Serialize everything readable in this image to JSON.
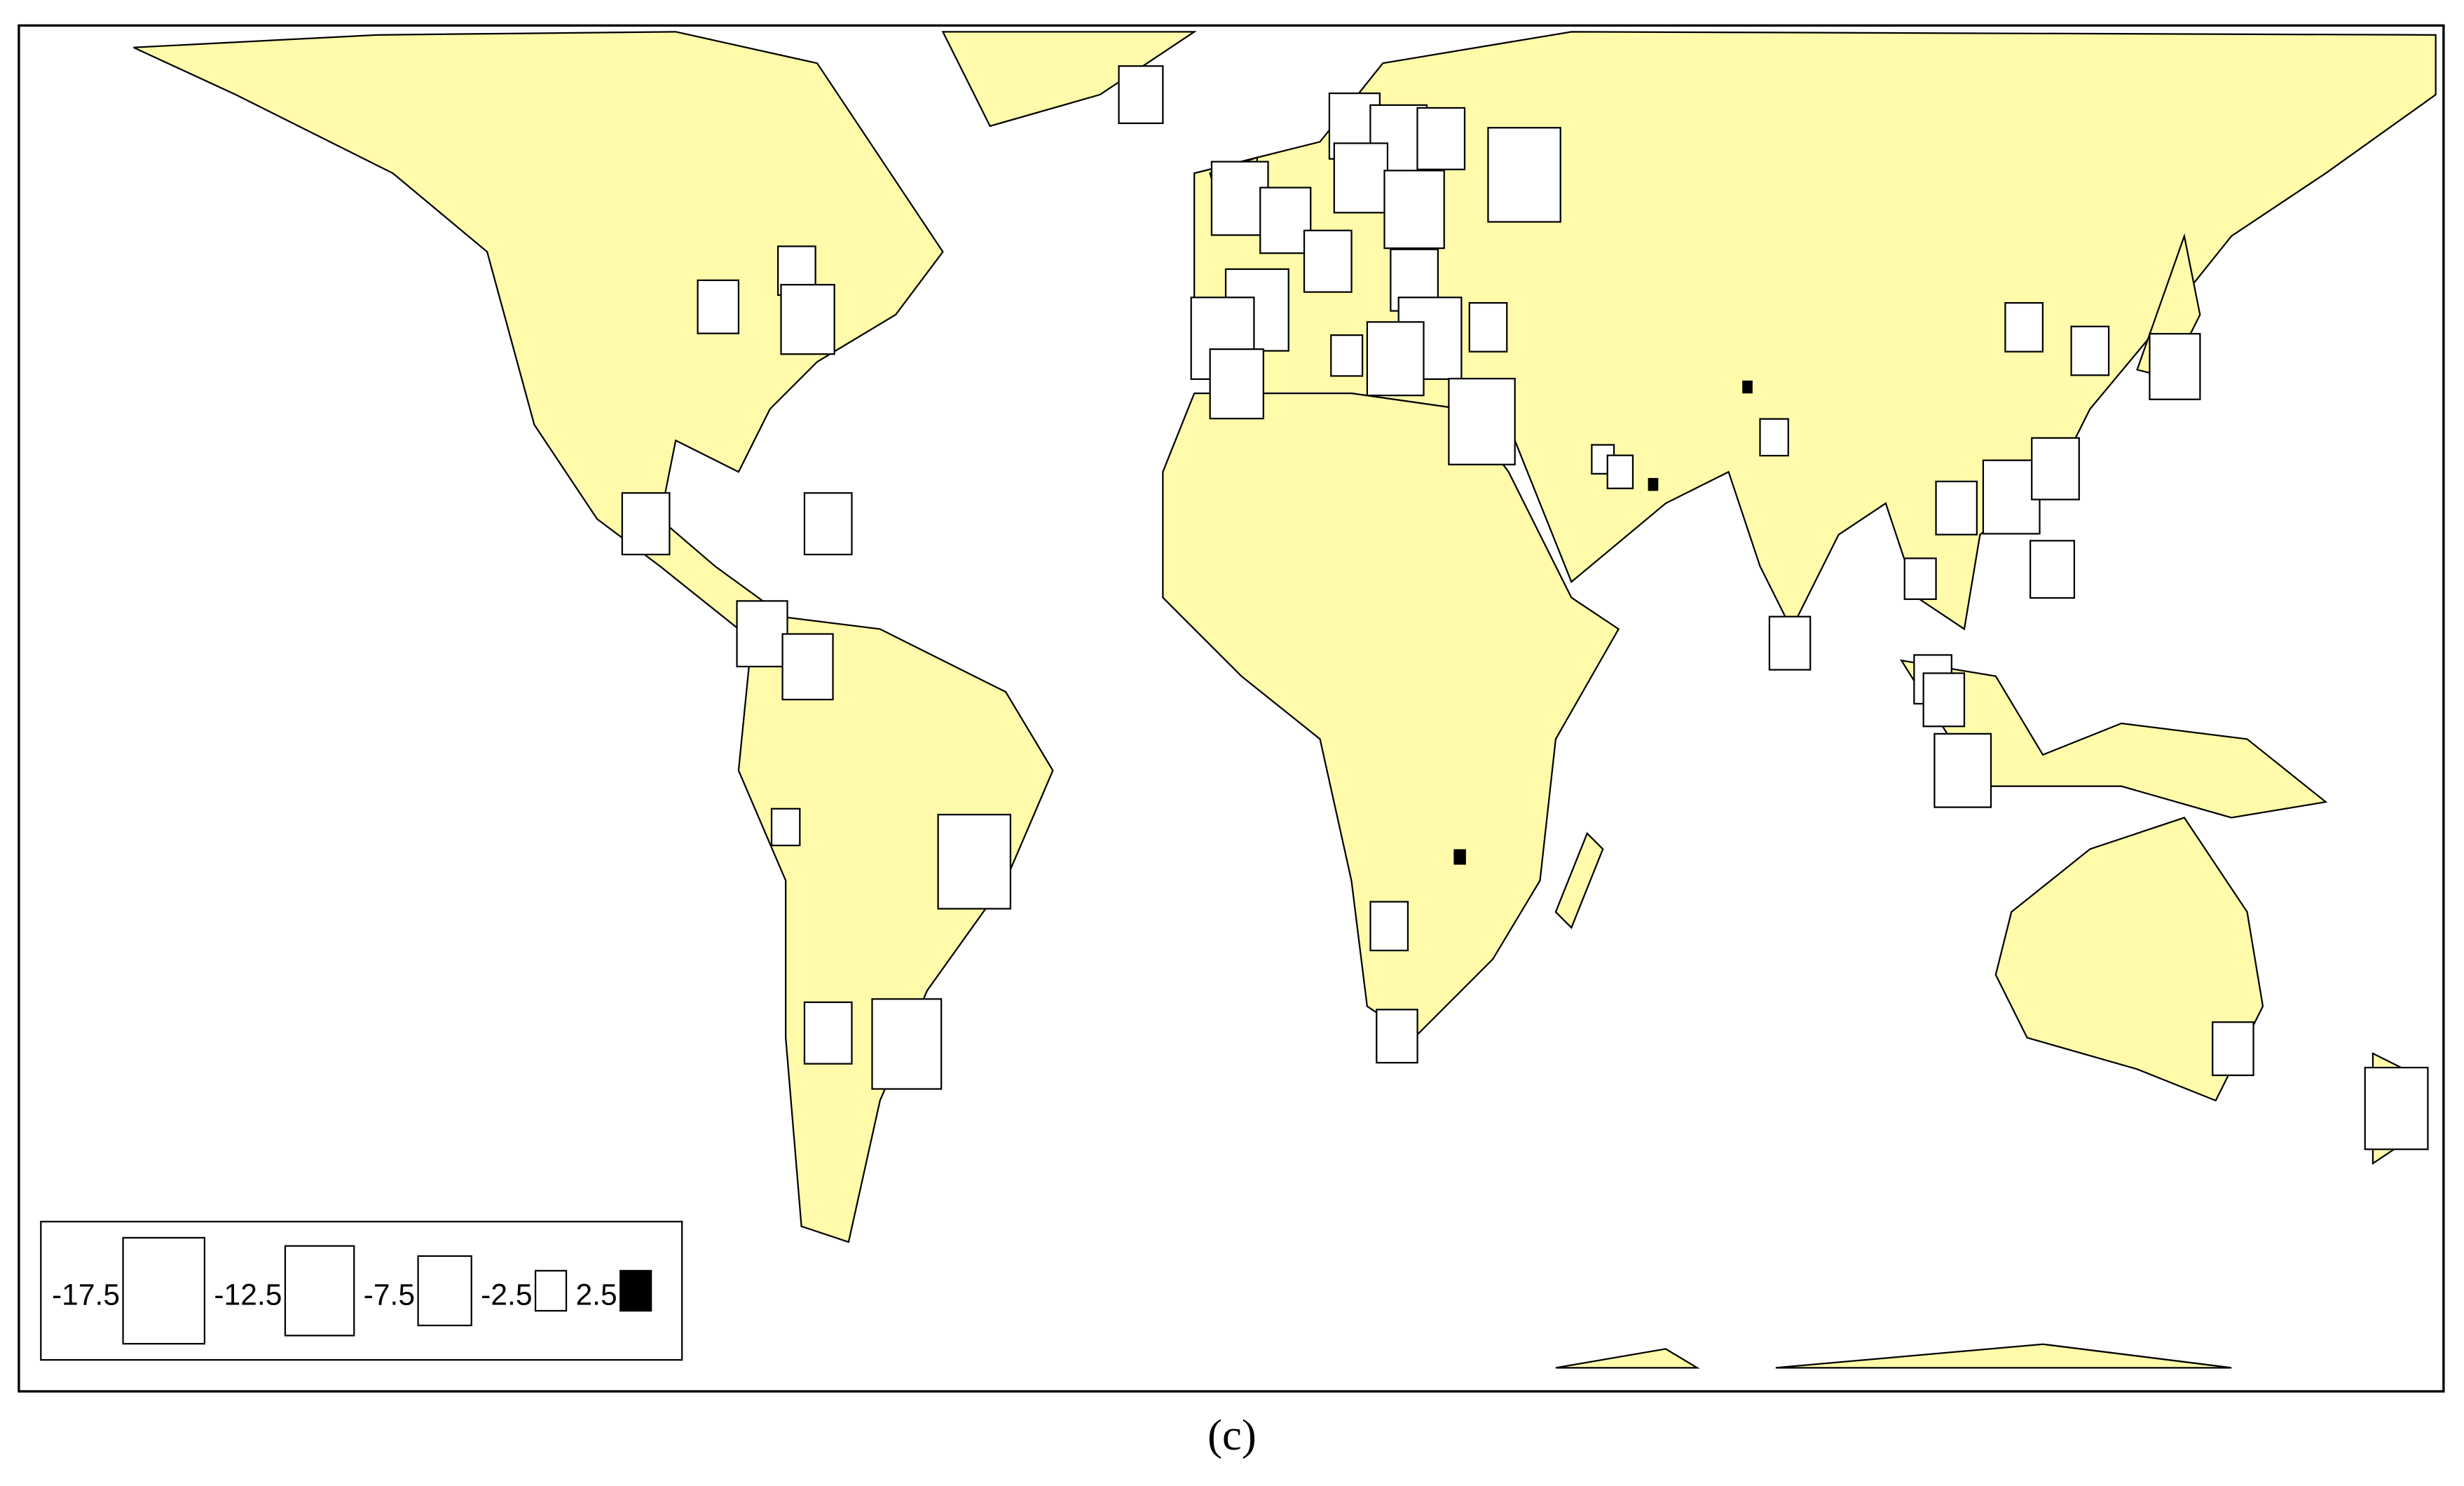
{
  "legend": {
    "values": [
      -17.5,
      -12.5,
      -7.5,
      -2.5,
      2.5
    ]
  },
  "markers": {
    "values": [
      -4.4,
      -3.7,
      -7.5,
      -5.9,
      -5.9,
      -6.7,
      -6.7,
      -2.1,
      -13.8,
      -5.9,
      -12.6,
      -5.1,
      -13.8,
      -6.7,
      -8.4,
      -5.9,
      -7.5,
      -8.4,
      -6.7,
      -9.4,
      -5.9,
      -5.9,
      -10.4,
      -10.4,
      -7.5,
      -2.6,
      -10.4,
      -3.7,
      -11.5,
      -8.4,
      -1.3,
      -1.7,
      0.2,
      0.2,
      -2.1,
      -4.4,
      -3.7,
      -3.7,
      -6.7,
      -8.4,
      -5.9,
      -4.4,
      -5.1,
      -2.6,
      -3.7,
      -4.4,
      -8.4,
      0.3,
      -3.7,
      -4.4,
      -4.4,
      -10.4
    ]
  },
  "caption": "(c)"
}
